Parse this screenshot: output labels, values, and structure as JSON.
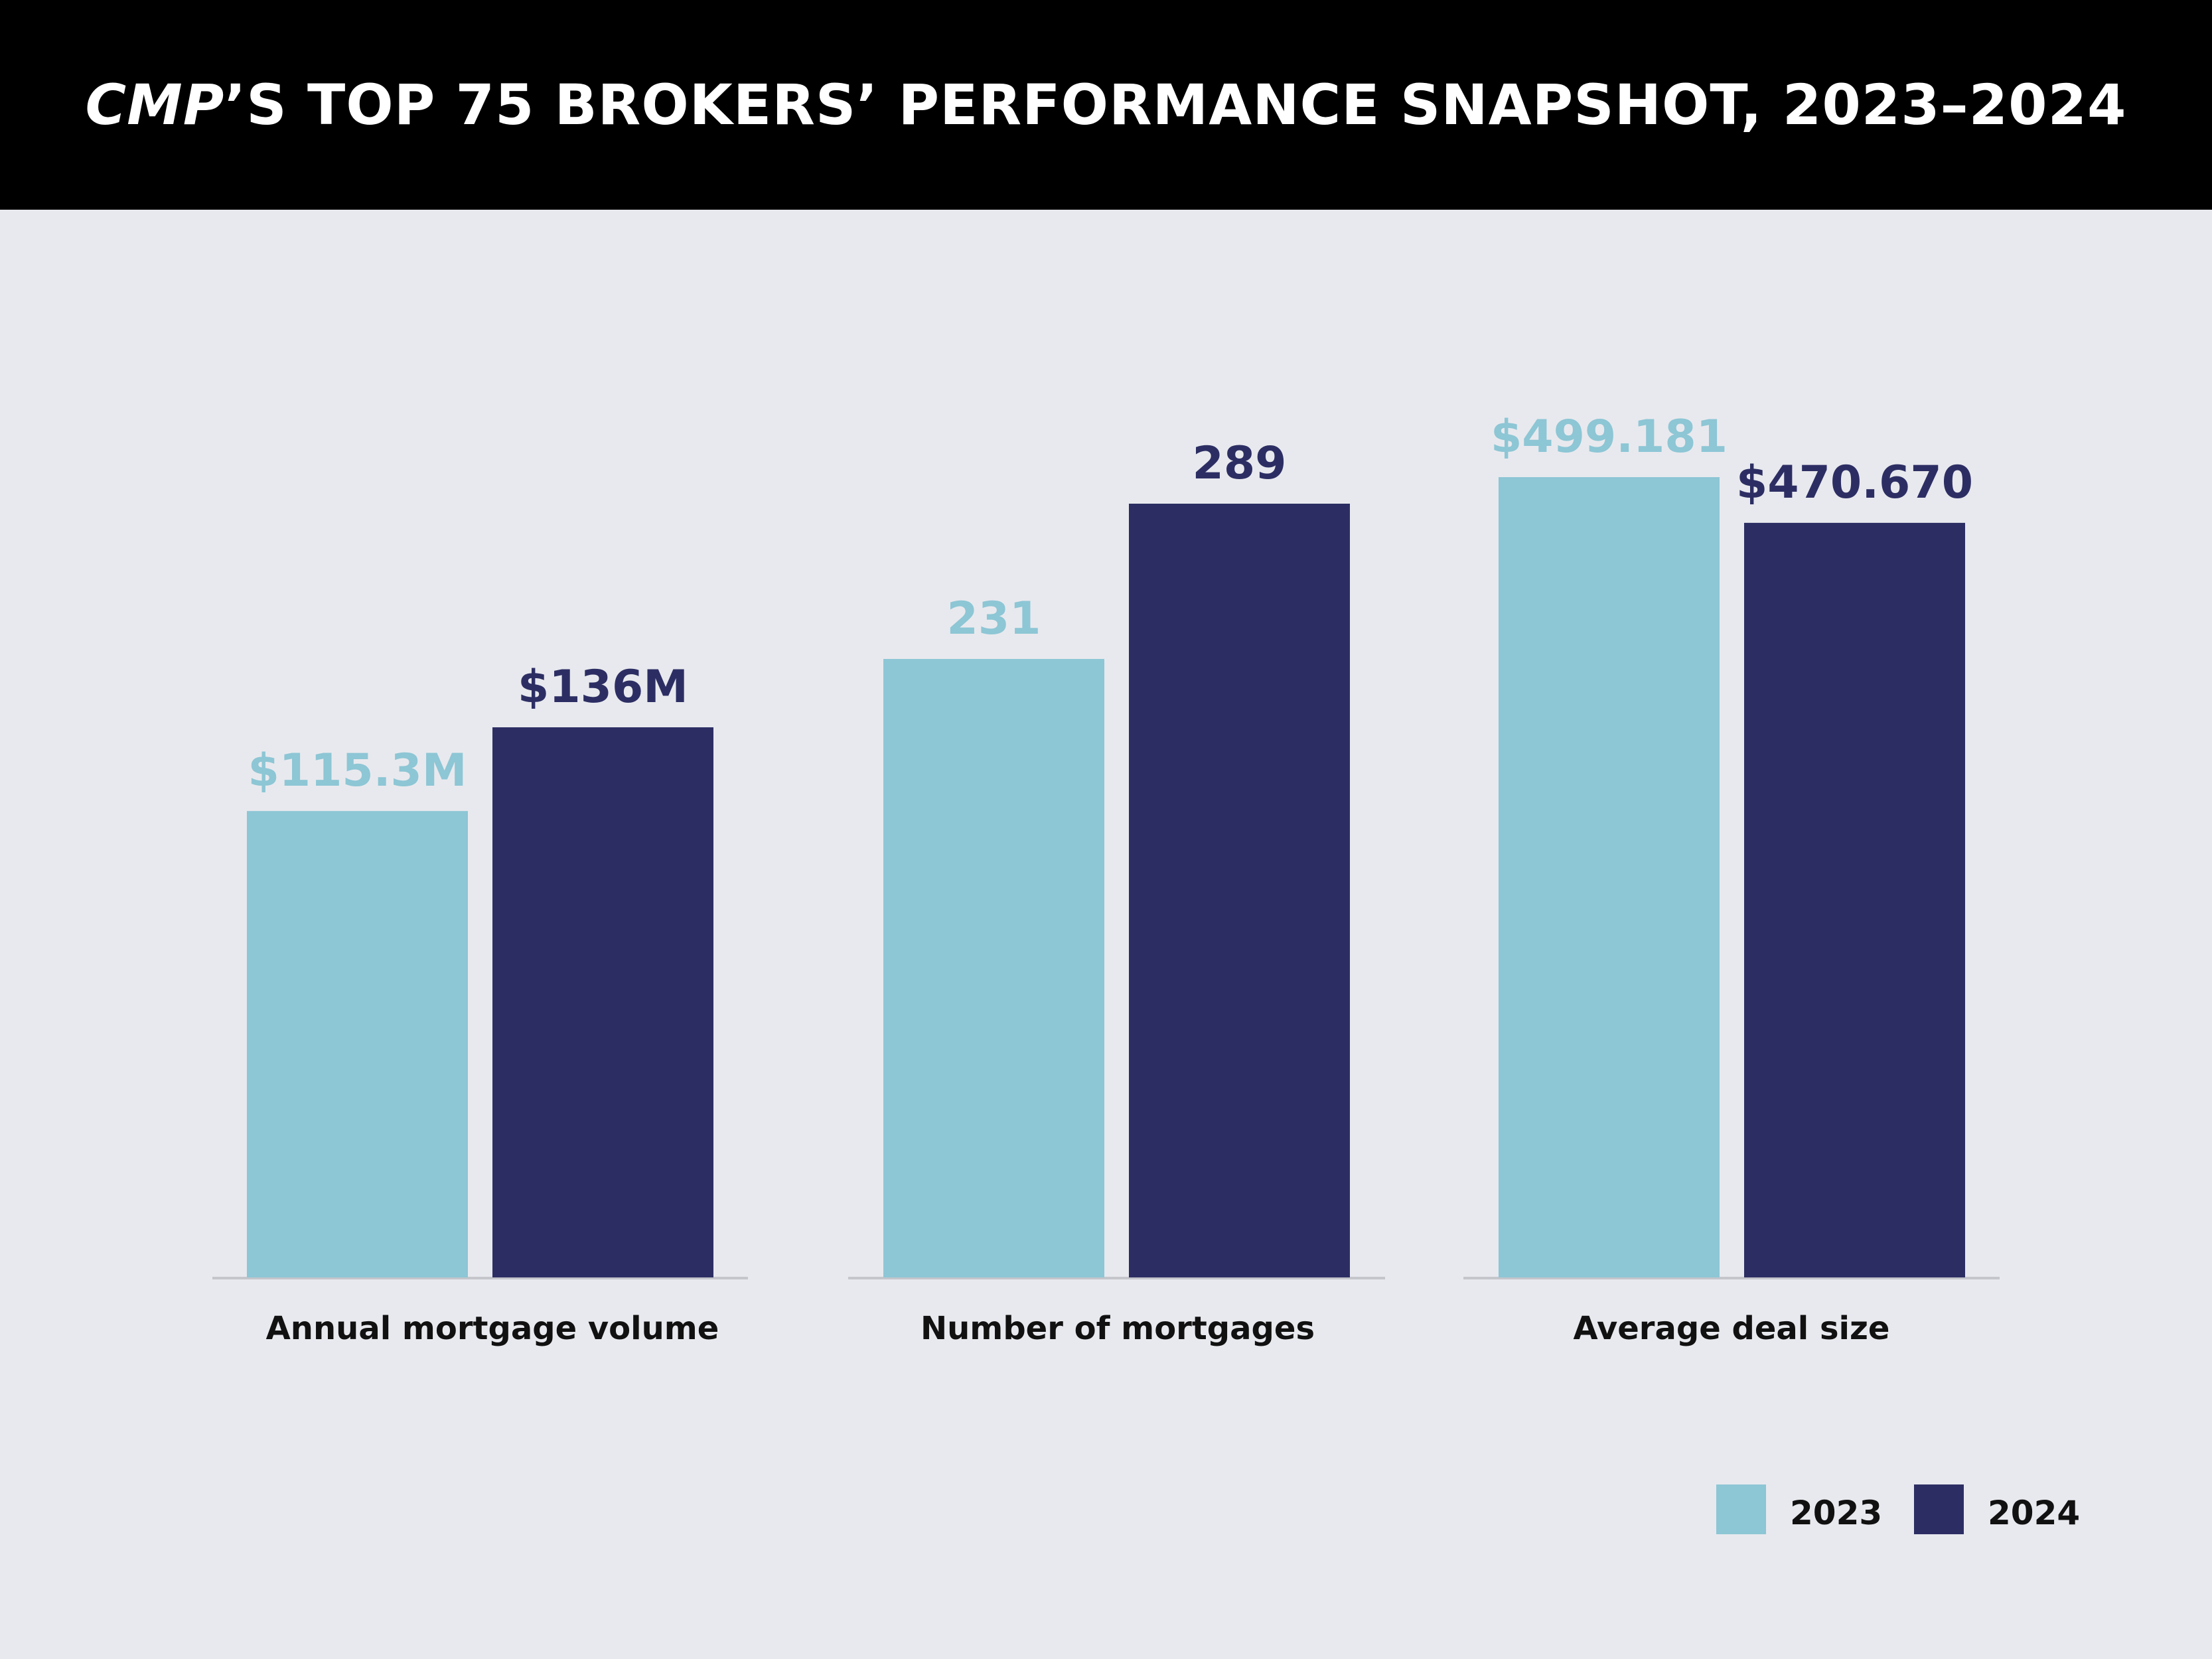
{
  "title": {
    "italic": "CMP",
    "rest": "’S TOP 75 BROKERS’ PERFORMANCE SNAPSHOT, 2023–2024"
  },
  "colors": {
    "series_2023": "#8dc6d5",
    "series_2024": "#2c2e63",
    "background": "#e8e9ee",
    "header": "#000000",
    "baseline": "#c4c6cc"
  },
  "chart_data": {
    "type": "bar",
    "title": "CMP’S TOP 75 BROKERS’ PERFORMANCE SNAPSHOT, 2023–2024",
    "xlabel": "",
    "ylabel": "",
    "grid": false,
    "legend": "bottom-right",
    "categories": [
      "Annual mortgage volume",
      "Number of mortgages",
      "Average deal size"
    ],
    "series": [
      {
        "name": "2023",
        "values": [
          115.3,
          231,
          499.181
        ],
        "labels": [
          "$115.3M",
          "231",
          "$499.181"
        ]
      },
      {
        "name": "2024",
        "values": [
          136,
          289,
          470.67
        ],
        "labels": [
          "$136M",
          "289",
          "$470.670"
        ]
      }
    ],
    "note": "Each category group is drawn on its own independent scale"
  }
}
